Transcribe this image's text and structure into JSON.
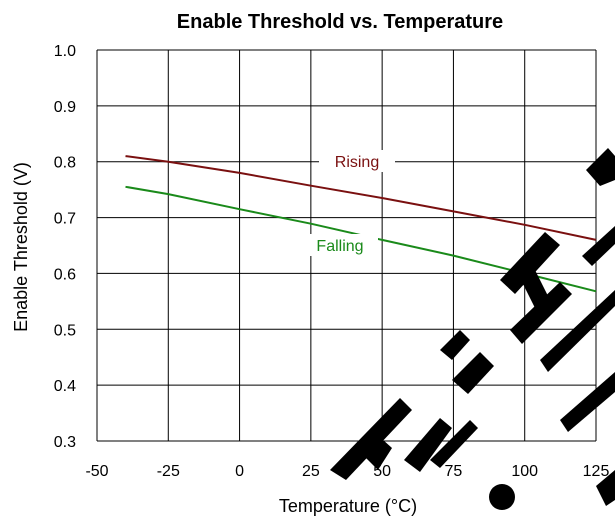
{
  "chart_data": {
    "type": "line",
    "title": "Enable Threshold vs. Temperature",
    "xlabel": "Temperature (°C)",
    "ylabel": "Enable Threshold (V)",
    "xlim": [
      -50,
      125
    ],
    "ylim": [
      0.3,
      1.0
    ],
    "x_ticks": [
      -50,
      -25,
      0,
      25,
      50,
      75,
      100,
      125
    ],
    "y_ticks": [
      "0.3",
      "0.4",
      "0.5",
      "0.6",
      "0.7",
      "0.8",
      "0.9",
      "1.0"
    ],
    "grid": true,
    "series": [
      {
        "name": "Rising",
        "color": "#7a1010",
        "x": [
          -40,
          -25,
          0,
          25,
          50,
          75,
          100,
          125
        ],
        "y": [
          0.81,
          0.8,
          0.78,
          0.757,
          0.735,
          0.711,
          0.687,
          0.66
        ]
      },
      {
        "name": "Falling",
        "color": "#1a8a1a",
        "x": [
          -40,
          -25,
          0,
          25,
          50,
          75,
          100,
          125
        ],
        "y": [
          0.755,
          0.742,
          0.715,
          0.689,
          0.66,
          0.632,
          0.6,
          0.568
        ]
      }
    ]
  }
}
